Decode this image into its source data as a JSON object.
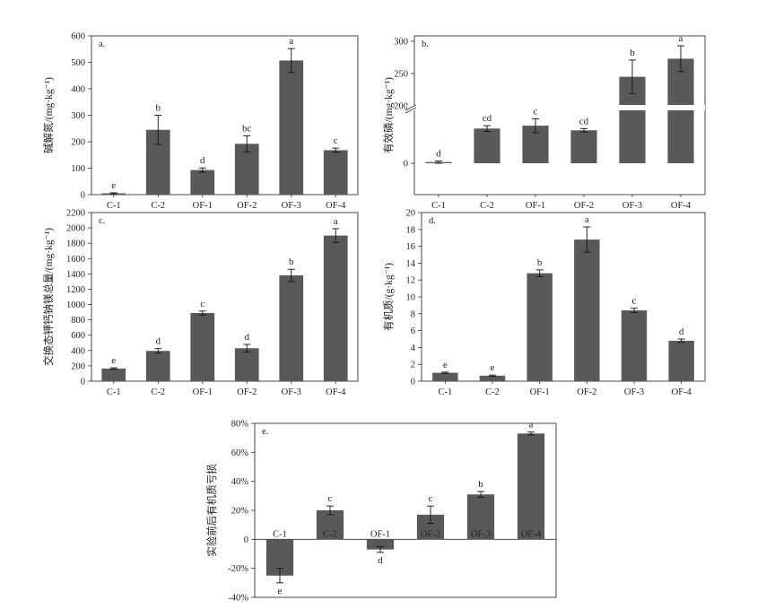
{
  "chart_data": [
    {
      "panel": "a.",
      "type": "bar",
      "ylabel": "碱解氮/(mg·kg⁻¹)",
      "categories": [
        "C-1",
        "C-2",
        "OF-1",
        "OF-2",
        "OF-3",
        "OF-4"
      ],
      "values": [
        5,
        245,
        93,
        192,
        507,
        168
      ],
      "errors": [
        2,
        55,
        8,
        30,
        45,
        8
      ],
      "letters": [
        "e",
        "b",
        "d",
        "bc",
        "a",
        "c"
      ],
      "ylim": [
        0,
        600
      ],
      "yticks": [
        "0",
        "100",
        "200",
        "300",
        "400",
        "500",
        "600"
      ]
    },
    {
      "panel": "b.",
      "type": "bar",
      "ylabel": "有效磷/(mg·kg⁻¹)",
      "axis_break": "lower segment shows 0 only, upper segment 200–300",
      "categories": [
        "C-1",
        "C-2",
        "OF-1",
        "OF-2",
        "OF-3",
        "OF-4"
      ],
      "values": [
        2,
        60,
        65,
        57,
        245,
        273
      ],
      "errors": [
        2,
        5,
        12,
        3,
        26,
        20
      ],
      "letters": [
        "d",
        "cd",
        "c",
        "cd",
        "b",
        "a"
      ],
      "ylim": [
        0,
        300
      ],
      "yticks": [
        "0",
        "200",
        "250",
        "300"
      ]
    },
    {
      "panel": "c.",
      "type": "bar",
      "ylabel": "交换态钾钙钠镁总量/(mg·kg⁻¹)",
      "categories": [
        "C-1",
        "C-2",
        "OF-1",
        "OF-2",
        "OF-3",
        "OF-4"
      ],
      "values": [
        165,
        395,
        890,
        430,
        1380,
        1900
      ],
      "errors": [
        10,
        30,
        25,
        50,
        80,
        90
      ],
      "letters": [
        "e",
        "d",
        "c",
        "d",
        "b",
        "a"
      ],
      "ylim": [
        0,
        2200
      ],
      "yticks": [
        "0",
        "200",
        "400",
        "600",
        "800",
        "1000",
        "1200",
        "1400",
        "1600",
        "1800",
        "2000",
        "2200"
      ]
    },
    {
      "panel": "d.",
      "type": "bar",
      "ylabel": "有机质/(g·kg⁻¹)",
      "categories": [
        "C-1",
        "C-2",
        "OF-1",
        "OF-2",
        "OF-3",
        "OF-4"
      ],
      "values": [
        1.0,
        0.65,
        12.8,
        16.8,
        8.4,
        4.8
      ],
      "errors": [
        0.08,
        0.08,
        0.4,
        1.5,
        0.25,
        0.2
      ],
      "letters": [
        "e",
        "e",
        "b",
        "a",
        "c",
        "d"
      ],
      "ylim": [
        0,
        20
      ],
      "yticks": [
        "0",
        "2",
        "4",
        "6",
        "8",
        "10",
        "12",
        "14",
        "16",
        "18",
        "20"
      ]
    },
    {
      "panel": "e.",
      "type": "bar",
      "ylabel": "实验前后有机质亏损",
      "categories": [
        "C-1",
        "C-2",
        "OF-1",
        "OF-2",
        "OF-3",
        "OF-4"
      ],
      "values": [
        -25,
        20,
        -7,
        17,
        31,
        73
      ],
      "errors": [
        5,
        3,
        2,
        6,
        2,
        1
      ],
      "letters": [
        "e",
        "c",
        "d",
        "c",
        "b",
        "a"
      ],
      "ylim": [
        -40,
        80
      ],
      "yticks": [
        "-40%",
        "-20%",
        "0",
        "20%",
        "40%",
        "60%",
        "80%"
      ]
    }
  ]
}
